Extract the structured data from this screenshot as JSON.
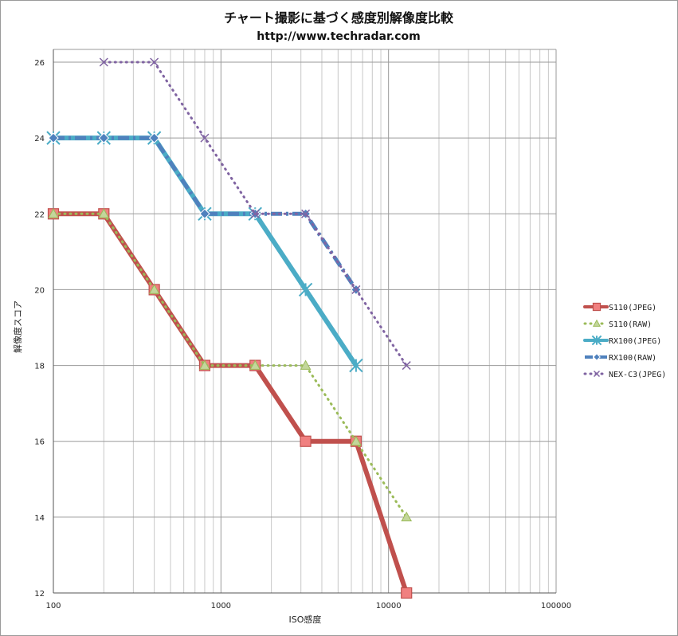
{
  "chart_data": {
    "type": "line",
    "title": "チャート撮影に基づく感度別解像度比較",
    "subtitle": "http://www.techradar.com",
    "xlabel": "ISO感度",
    "ylabel": "解像度スコア",
    "xscale": "log",
    "xlim": [
      100,
      100000
    ],
    "ylim": [
      12,
      26
    ],
    "ytick_step": 2,
    "xticks": [
      100,
      1000,
      10000,
      100000
    ],
    "xtick_labels": [
      "100",
      "1000",
      "10000",
      "100000"
    ],
    "yticks": [
      12,
      14,
      16,
      18,
      20,
      22,
      24,
      26
    ],
    "ytick_labels": [
      "12",
      "14",
      "16",
      "18",
      "20",
      "22",
      "24",
      "26"
    ],
    "grid": true,
    "legend_position": "right",
    "series": [
      {
        "name": "S110(JPEG)",
        "color": "#c0504d",
        "style": "solid-thick",
        "marker": "square",
        "x": [
          100,
          200,
          400,
          800,
          1600,
          3200,
          6400,
          12800
        ],
        "y": [
          22,
          22,
          20,
          18,
          18,
          16,
          16,
          12
        ]
      },
      {
        "name": "S110(RAW)",
        "color": "#9bbb59",
        "style": "dotted",
        "marker": "triangle",
        "x": [
          100,
          200,
          400,
          800,
          1600,
          3200,
          6400,
          12800
        ],
        "y": [
          22,
          22,
          20,
          18,
          18,
          18,
          16,
          14
        ]
      },
      {
        "name": "RX100(JPEG)",
        "color": "#4bacc6",
        "style": "solid-thick",
        "marker": "star",
        "x": [
          100,
          200,
          400,
          800,
          1600,
          3200,
          6400
        ],
        "y": [
          24,
          24,
          24,
          22,
          22,
          20,
          18
        ]
      },
      {
        "name": "RX100(RAW)",
        "color": "#4f81bd",
        "style": "dash-dot",
        "marker": "diamond",
        "x": [
          100,
          200,
          400,
          800,
          1600,
          3200,
          6400
        ],
        "y": [
          24,
          24,
          24,
          22,
          22,
          22,
          20
        ]
      },
      {
        "name": "NEX-C3(JPEG)",
        "color": "#8064a2",
        "style": "dotted",
        "marker": "x",
        "x": [
          200,
          400,
          800,
          1600,
          3200,
          6400,
          12800
        ],
        "y": [
          26,
          26,
          24,
          22,
          22,
          20,
          18
        ]
      }
    ]
  }
}
